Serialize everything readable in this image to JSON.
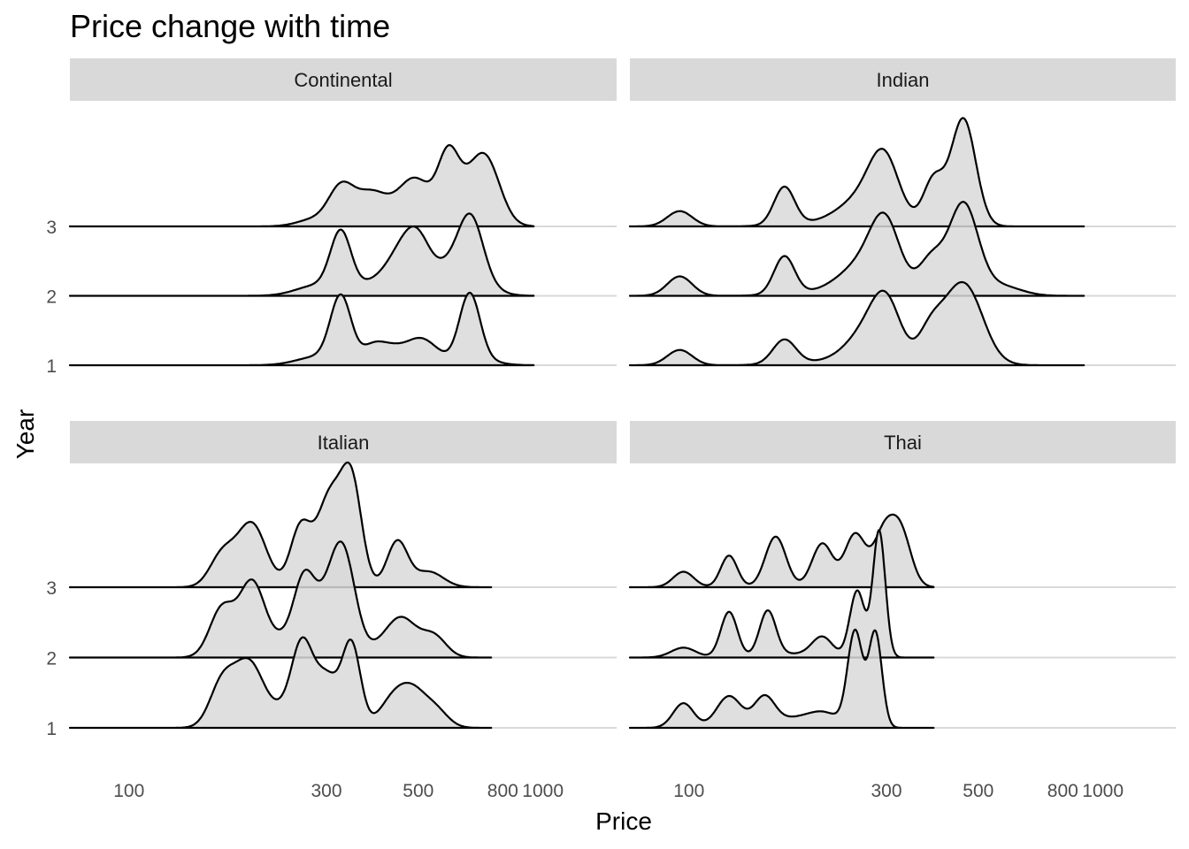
{
  "chart_data": {
    "type": "area",
    "title": "Price change with time",
    "xlabel": "Price",
    "ylabel": "Year",
    "x_scale": "log10",
    "xlim": [
      72,
      1250
    ],
    "x_ticks": [
      100,
      300,
      500,
      800,
      1000
    ],
    "x_tick_labels": [
      "100",
      "300",
      "500",
      "800",
      "1000"
    ],
    "y_ticks": [
      1,
      2,
      3
    ],
    "y_tick_labels": [
      "1",
      "2",
      "3"
    ],
    "grid": "horizontal",
    "facets": [
      {
        "label": "Continental",
        "x_range": [
          72,
          950
        ],
        "peak_height": 1.8,
        "ridges": [
          {
            "year": 1,
            "peaks": [
              [
                285,
                0.12,
                0.05
              ],
              [
                325,
                0.95,
                0.025
              ],
              [
                390,
                0.28,
                0.03
              ],
              [
                440,
                0.2,
                0.03
              ],
              [
                500,
                0.3,
                0.03
              ],
              [
                550,
                0.15,
                0.03
              ],
              [
                665,
                1.0,
                0.025
              ],
              [
                720,
                0.06,
                0.04
              ]
            ]
          },
          {
            "year": 2,
            "peaks": [
              [
                285,
                0.15,
                0.05
              ],
              [
                325,
                0.85,
                0.025
              ],
              [
                390,
                0.18,
                0.04
              ],
              [
                455,
                0.55,
                0.035
              ],
              [
                500,
                0.6,
                0.03
              ],
              [
                590,
                0.4,
                0.04
              ],
              [
                670,
                0.95,
                0.03
              ],
              [
                720,
                0.1,
                0.04
              ]
            ]
          },
          {
            "year": 3,
            "peaks": [
              [
                280,
                0.1,
                0.04
              ],
              [
                325,
                0.52,
                0.03
              ],
              [
                385,
                0.48,
                0.04
              ],
              [
                490,
                0.68,
                0.04
              ],
              [
                590,
                0.82,
                0.025
              ],
              [
                650,
                0.4,
                0.04
              ],
              [
                730,
                0.85,
                0.035
              ]
            ]
          }
        ]
      },
      {
        "label": "Indian",
        "x_range": [
          72,
          900
        ],
        "peak_height": 1.8,
        "ridges": [
          {
            "year": 1,
            "peaks": [
              [
                95,
                0.22,
                0.03
              ],
              [
                170,
                0.35,
                0.028
              ],
              [
                235,
                0.06,
                0.1
              ],
              [
                272,
                0.45,
                0.05
              ],
              [
                300,
                0.7,
                0.035
              ],
              [
                385,
                0.55,
                0.03
              ],
              [
                430,
                0.3,
                0.03
              ],
              [
                470,
                1.0,
                0.04
              ],
              [
                530,
                0.05,
                0.04
              ]
            ]
          },
          {
            "year": 2,
            "peaks": [
              [
                95,
                0.28,
                0.03
              ],
              [
                170,
                0.55,
                0.025
              ],
              [
                235,
                0.06,
                0.1
              ],
              [
                270,
                0.45,
                0.06
              ],
              [
                298,
                0.8,
                0.035
              ],
              [
                385,
                0.5,
                0.03
              ],
              [
                460,
                1.3,
                0.035
              ],
              [
                560,
                0.15,
                0.05
              ]
            ]
          },
          {
            "year": 3,
            "peaks": [
              [
                95,
                0.22,
                0.03
              ],
              [
                170,
                0.55,
                0.025
              ],
              [
                235,
                0.06,
                0.1
              ],
              [
                270,
                0.4,
                0.06
              ],
              [
                296,
                0.75,
                0.035
              ],
              [
                390,
                0.65,
                0.025
              ],
              [
                460,
                1.55,
                0.03
              ]
            ]
          }
        ]
      },
      {
        "label": "Italian",
        "x_range": [
          72,
          750
        ],
        "peak_height": 1.8,
        "ridges": [
          {
            "year": 1,
            "peaks": [
              [
                168,
                0.62,
                0.03
              ],
              [
                195,
                0.9,
                0.035
              ],
              [
                240,
                0.25,
                0.04
              ],
              [
                262,
                1.02,
                0.025
              ],
              [
                300,
                0.72,
                0.03
              ],
              [
                345,
                1.15,
                0.022
              ],
              [
                440,
                0.45,
                0.035
              ],
              [
                490,
                0.36,
                0.03
              ],
              [
                550,
                0.25,
                0.03
              ]
            ]
          },
          {
            "year": 2,
            "peaks": [
              [
                168,
                0.7,
                0.03
              ],
              [
                198,
                1.0,
                0.03
              ],
              [
                240,
                0.28,
                0.05
              ],
              [
                265,
                0.85,
                0.025
              ],
              [
                300,
                0.6,
                0.035
              ],
              [
                330,
                1.3,
                0.03
              ],
              [
                420,
                0.18,
                0.04
              ],
              [
                460,
                0.45,
                0.035
              ],
              [
                545,
                0.3,
                0.03
              ]
            ]
          },
          {
            "year": 3,
            "peaks": [
              [
                168,
                0.45,
                0.03
              ],
              [
                198,
                0.9,
                0.035
              ],
              [
                260,
                0.85,
                0.025
              ],
              [
                305,
                1.25,
                0.03
              ],
              [
                345,
                1.45,
                0.025
              ],
              [
                445,
                0.65,
                0.025
              ],
              [
                530,
                0.22,
                0.035
              ]
            ]
          }
        ]
      },
      {
        "label": "Thai",
        "x_range": [
          72,
          390
        ],
        "peak_height": 1.8,
        "ridges": [
          {
            "year": 1,
            "peaks": [
              [
                97,
                0.35,
                0.025
              ],
              [
                125,
                0.45,
                0.03
              ],
              [
                152,
                0.4,
                0.025
              ],
              [
                175,
                0.12,
                0.05
              ],
              [
                212,
                0.2,
                0.04
              ],
              [
                252,
                1.35,
                0.018
              ],
              [
                282,
                1.35,
                0.016
              ]
            ]
          },
          {
            "year": 2,
            "peaks": [
              [
                97,
                0.14,
                0.03
              ],
              [
                125,
                0.65,
                0.02
              ],
              [
                155,
                0.65,
                0.02
              ],
              [
                180,
                0.05,
                0.05
              ],
              [
                210,
                0.28,
                0.025
              ],
              [
                255,
                0.95,
                0.018
              ],
              [
                288,
                1.8,
                0.015
              ]
            ]
          },
          {
            "year": 3,
            "peaks": [
              [
                97,
                0.22,
                0.025
              ],
              [
                125,
                0.45,
                0.02
              ],
              [
                162,
                0.72,
                0.025
              ],
              [
                210,
                0.62,
                0.025
              ],
              [
                252,
                0.75,
                0.025
              ],
              [
                295,
                0.72,
                0.025
              ],
              [
                325,
                0.75,
                0.025
              ]
            ]
          }
        ]
      }
    ]
  }
}
